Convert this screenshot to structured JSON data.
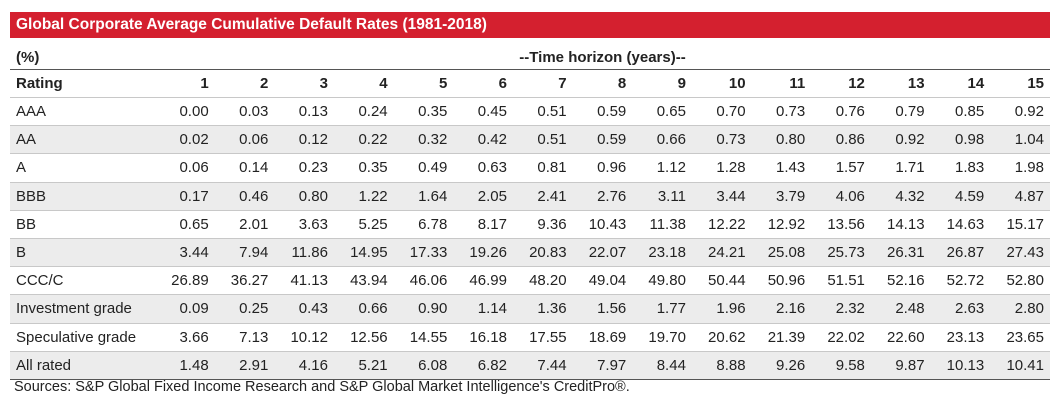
{
  "title": "Global Corporate Average Cumulative Default Rates (1981-2018)",
  "unit_label": "(%)",
  "horizon_label": "--Time horizon (years)--",
  "rating_header": "Rating",
  "years": [
    "1",
    "2",
    "3",
    "4",
    "5",
    "6",
    "7",
    "8",
    "9",
    "10",
    "11",
    "12",
    "13",
    "14",
    "15"
  ],
  "rows": [
    {
      "rating": "AAA",
      "values": [
        "0.00",
        "0.03",
        "0.13",
        "0.24",
        "0.35",
        "0.45",
        "0.51",
        "0.59",
        "0.65",
        "0.70",
        "0.73",
        "0.76",
        "0.79",
        "0.85",
        "0.92"
      ]
    },
    {
      "rating": "AA",
      "values": [
        "0.02",
        "0.06",
        "0.12",
        "0.22",
        "0.32",
        "0.42",
        "0.51",
        "0.59",
        "0.66",
        "0.73",
        "0.80",
        "0.86",
        "0.92",
        "0.98",
        "1.04"
      ]
    },
    {
      "rating": "A",
      "values": [
        "0.06",
        "0.14",
        "0.23",
        "0.35",
        "0.49",
        "0.63",
        "0.81",
        "0.96",
        "1.12",
        "1.28",
        "1.43",
        "1.57",
        "1.71",
        "1.83",
        "1.98"
      ]
    },
    {
      "rating": "BBB",
      "values": [
        "0.17",
        "0.46",
        "0.80",
        "1.22",
        "1.64",
        "2.05",
        "2.41",
        "2.76",
        "3.11",
        "3.44",
        "3.79",
        "4.06",
        "4.32",
        "4.59",
        "4.87"
      ]
    },
    {
      "rating": "BB",
      "values": [
        "0.65",
        "2.01",
        "3.63",
        "5.25",
        "6.78",
        "8.17",
        "9.36",
        "10.43",
        "11.38",
        "12.22",
        "12.92",
        "13.56",
        "14.13",
        "14.63",
        "15.17"
      ]
    },
    {
      "rating": "B",
      "values": [
        "3.44",
        "7.94",
        "11.86",
        "14.95",
        "17.33",
        "19.26",
        "20.83",
        "22.07",
        "23.18",
        "24.21",
        "25.08",
        "25.73",
        "26.31",
        "26.87",
        "27.43"
      ]
    },
    {
      "rating": "CCC/C",
      "values": [
        "26.89",
        "36.27",
        "41.13",
        "43.94",
        "46.06",
        "46.99",
        "48.20",
        "49.04",
        "49.80",
        "50.44",
        "50.96",
        "51.51",
        "52.16",
        "52.72",
        "52.80"
      ]
    },
    {
      "rating": "Investment grade",
      "values": [
        "0.09",
        "0.25",
        "0.43",
        "0.66",
        "0.90",
        "1.14",
        "1.36",
        "1.56",
        "1.77",
        "1.96",
        "2.16",
        "2.32",
        "2.48",
        "2.63",
        "2.80"
      ]
    },
    {
      "rating": "Speculative grade",
      "values": [
        "3.66",
        "7.13",
        "10.12",
        "12.56",
        "14.55",
        "16.18",
        "17.55",
        "18.69",
        "19.70",
        "20.62",
        "21.39",
        "22.02",
        "22.60",
        "23.13",
        "23.65"
      ]
    },
    {
      "rating": "All rated",
      "values": [
        "1.48",
        "2.91",
        "4.16",
        "5.21",
        "6.08",
        "6.82",
        "7.44",
        "7.97",
        "8.44",
        "8.88",
        "9.26",
        "9.58",
        "9.87",
        "10.13",
        "10.41"
      ]
    }
  ],
  "source": "Sources: S&P Global Fixed Income Research and S&P Global Market Intelligence's CreditPro®.",
  "colors": {
    "title_bar": "#d4202f",
    "stripe": "#ececec"
  }
}
